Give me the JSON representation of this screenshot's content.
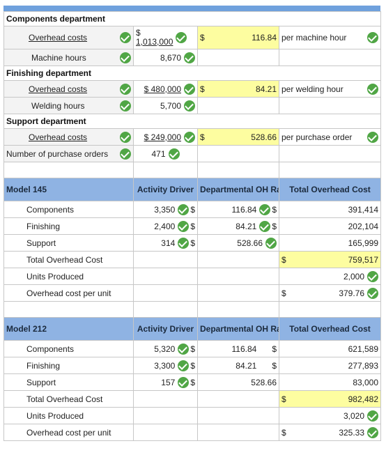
{
  "components_dept": {
    "title": "Components department",
    "overhead_label": "Overhead costs",
    "overhead_dollar": "$",
    "overhead_value": "1,013,000",
    "rate_dollar": "$",
    "rate_value": "116.84",
    "rate_unit": "per machine hour",
    "driver_label": "Machine hours",
    "driver_value": "8,670"
  },
  "finishing_dept": {
    "title": "Finishing department",
    "overhead_label": "Overhead costs",
    "overhead_value": "$ 480,000",
    "rate_dollar": "$",
    "rate_value": "84.21",
    "rate_unit": "per welding hour",
    "driver_label": "Welding hours",
    "driver_value": "5,700"
  },
  "support_dept": {
    "title": "Support department",
    "overhead_label": "Overhead costs",
    "overhead_value": "$ 249,000",
    "rate_dollar": "$",
    "rate_value": "528.66",
    "rate_unit": "per purchase order",
    "driver_label": "Number of purchase orders",
    "driver_value": "471"
  },
  "headers": {
    "activity": "Activity Driver",
    "dept_rate": "Departmental OH Rate",
    "total_oh": "Total Overhead Cost"
  },
  "model145": {
    "name": "Model 145",
    "rows": [
      {
        "label": "Components",
        "driver": "3,350",
        "rate": "116.84",
        "total": "391,414"
      },
      {
        "label": "Finishing",
        "driver": "2,400",
        "rate": "84.21",
        "total": "202,104"
      },
      {
        "label": "Support",
        "driver": "314",
        "rate": "528.66",
        "total": "165,999"
      }
    ],
    "total_label": "Total Overhead Cost",
    "total_value": "759,517",
    "units_label": "Units Produced",
    "units_value": "2,000",
    "per_unit_label": "Overhead cost per unit",
    "per_unit_value": "379.76"
  },
  "model212": {
    "name": "Model 212",
    "rows": [
      {
        "label": "Components",
        "driver": "5,320",
        "rate": "116.84",
        "total": "621,589"
      },
      {
        "label": "Finishing",
        "driver": "3,300",
        "rate": "84.21",
        "total": "277,893"
      },
      {
        "label": "Support",
        "driver": "157",
        "rate": "528.66",
        "total": "83,000"
      }
    ],
    "total_label": "Total Overhead Cost",
    "total_value": "982,482",
    "units_label": "Units Produced",
    "units_value": "3,020",
    "per_unit_label": "Overhead cost per unit",
    "per_unit_value": "325.33"
  },
  "symbols": {
    "dollar": "$"
  },
  "colors": {
    "header_blue": "#8fb3e3",
    "highlight_yellow": "#fdfda0",
    "check_green": "#50a645"
  }
}
